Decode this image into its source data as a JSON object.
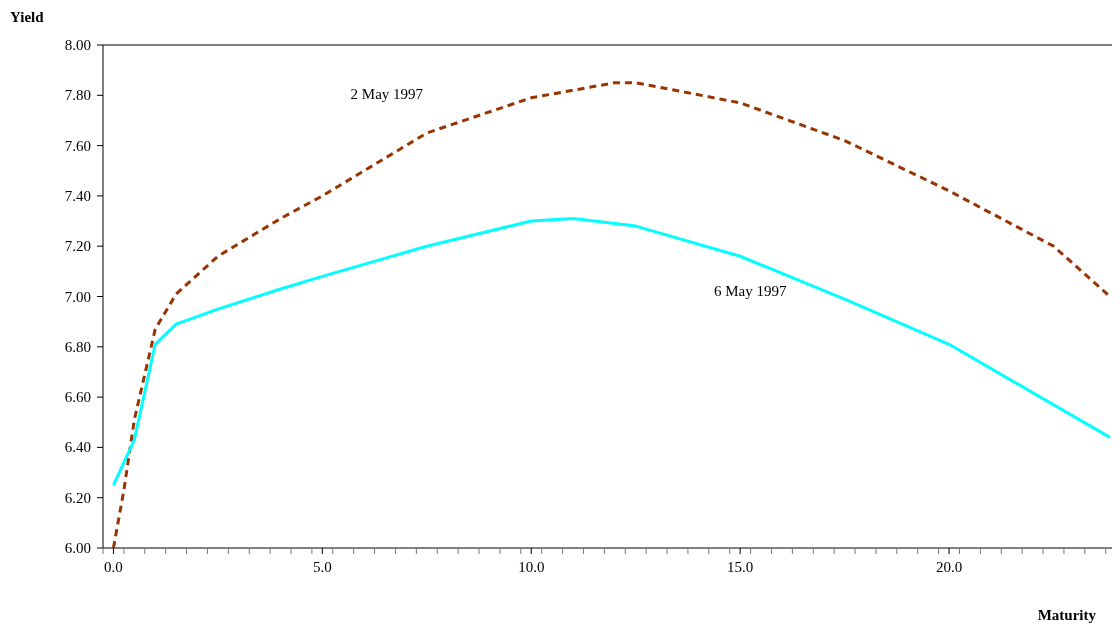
{
  "chart_data": {
    "type": "line",
    "xlabel": "Maturity",
    "ylabel": "Yield",
    "xlim": [
      -0.25,
      23.9
    ],
    "ylim": [
      6,
      8
    ],
    "yticks": [
      {
        "value": 6,
        "label": "6.00"
      },
      {
        "value": 6.2,
        "label": "6.20"
      },
      {
        "value": 6.4,
        "label": "6.40"
      },
      {
        "value": 6.6,
        "label": "6.60"
      },
      {
        "value": 6.8,
        "label": "6.80"
      },
      {
        "value": 7,
        "label": "7.00"
      },
      {
        "value": 7.2,
        "label": "7.20"
      },
      {
        "value": 7.4,
        "label": "7.40"
      },
      {
        "value": 7.6,
        "label": "7.60"
      },
      {
        "value": 7.8,
        "label": "7.80"
      },
      {
        "value": 8,
        "label": "8.00"
      }
    ],
    "xticks": [
      {
        "value": 0,
        "label": "0.0"
      },
      {
        "value": 5,
        "label": "5.0"
      },
      {
        "value": 10,
        "label": "10.0"
      },
      {
        "value": 15,
        "label": "15.0"
      },
      {
        "value": 20,
        "label": "20.0"
      },
      {
        "value": -0.25,
        "label": null
      },
      {
        "value": 0.25,
        "label": null
      },
      {
        "value": 0.75,
        "label": null
      },
      {
        "value": 1.25,
        "label": null
      },
      {
        "value": 1.75,
        "label": null
      },
      {
        "value": 2.25,
        "label": null
      },
      {
        "value": 2.75,
        "label": null
      },
      {
        "value": 3.25,
        "label": null
      },
      {
        "value": 3.75,
        "label": null
      },
      {
        "value": 4.25,
        "label": null
      },
      {
        "value": 4.75,
        "label": null
      },
      {
        "value": 5.25,
        "label": null
      },
      {
        "value": 5.75,
        "label": null
      },
      {
        "value": 6.25,
        "label": null
      },
      {
        "value": 6.75,
        "label": null
      },
      {
        "value": 7.25,
        "label": null
      },
      {
        "value": 7.75,
        "label": null
      },
      {
        "value": 8.25,
        "label": null
      },
      {
        "value": 8.75,
        "label": null
      },
      {
        "value": 9.25,
        "label": null
      },
      {
        "value": 9.75,
        "label": null
      },
      {
        "value": 10.25,
        "label": null
      },
      {
        "value": 10.75,
        "label": null
      },
      {
        "value": 11.25,
        "label": null
      },
      {
        "value": 11.75,
        "label": null
      },
      {
        "value": 12.25,
        "label": null
      },
      {
        "value": 12.75,
        "label": null
      },
      {
        "value": 13.25,
        "label": null
      },
      {
        "value": 13.75,
        "label": null
      },
      {
        "value": 14.25,
        "label": null
      },
      {
        "value": 14.75,
        "label": null
      },
      {
        "value": 15.25,
        "label": null
      },
      {
        "value": 15.75,
        "label": null
      },
      {
        "value": 16.25,
        "label": null
      },
      {
        "value": 16.75,
        "label": null
      },
      {
        "value": 17.25,
        "label": null
      },
      {
        "value": 17.75,
        "label": null
      },
      {
        "value": 18.25,
        "label": null
      },
      {
        "value": 18.75,
        "label": null
      },
      {
        "value": 19.25,
        "label": null
      },
      {
        "value": 19.75,
        "label": null
      },
      {
        "value": 20.25,
        "label": null
      },
      {
        "value": 20.75,
        "label": null
      },
      {
        "value": 21.25,
        "label": null
      },
      {
        "value": 21.75,
        "label": null
      },
      {
        "value": 22.25,
        "label": null
      },
      {
        "value": 22.75,
        "label": null
      },
      {
        "value": 23.25,
        "label": null
      },
      {
        "value": 23.75,
        "label": null
      }
    ],
    "grid": false,
    "marker": "none",
    "series": [
      {
        "name": "2 May 1997",
        "color": "#993300",
        "line_style": "dashed",
        "x": [
          0,
          0.25,
          0.5,
          1,
          1.5,
          2.5,
          4,
          5,
          7.5,
          10,
          12,
          12.5,
          15,
          17.5,
          20,
          22.5,
          23.85
        ],
        "values": [
          6.0,
          6.23,
          6.51,
          6.87,
          7.01,
          7.16,
          7.31,
          7.4,
          7.65,
          7.79,
          7.85,
          7.85,
          7.77,
          7.62,
          7.42,
          7.2,
          7.0
        ]
      },
      {
        "name": "6 May 1997",
        "color": "#00ffff",
        "line_style": "solid",
        "x": [
          0,
          0.5,
          1,
          1.5,
          2.5,
          4,
          5,
          7.5,
          10,
          11,
          12.5,
          15,
          17.5,
          20,
          23.85
        ],
        "values": [
          6.25,
          6.43,
          6.81,
          6.89,
          6.95,
          7.03,
          7.08,
          7.2,
          7.3,
          7.31,
          7.28,
          7.16,
          6.99,
          6.81,
          6.44
        ]
      }
    ]
  }
}
